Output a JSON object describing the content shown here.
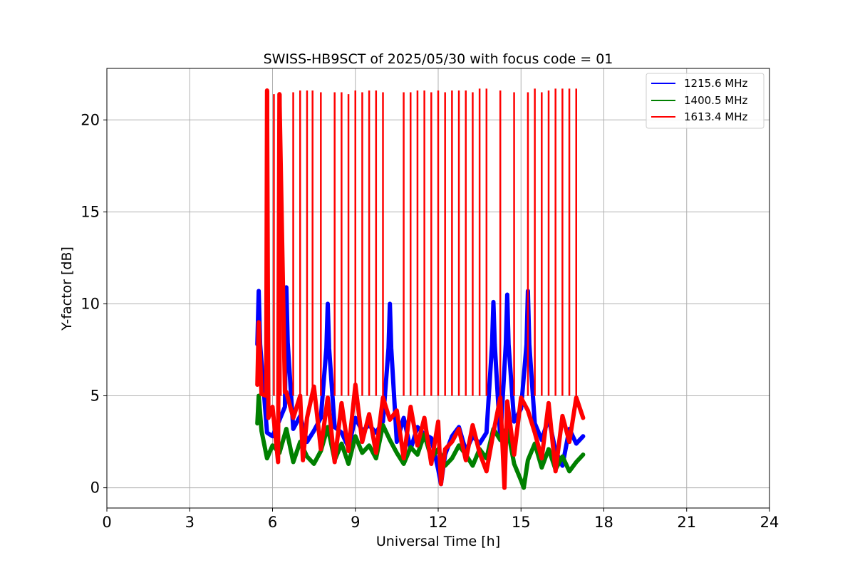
{
  "chart_data": {
    "type": "line",
    "title": "SWISS-HB9SCT of 2025/05/30 with focus code = 01",
    "xlabel": "Universal Time [h]",
    "ylabel": "Y-factor [dB]",
    "xlim": [
      0,
      24
    ],
    "ylim": [
      -1.1,
      22.8
    ],
    "xticks": [
      0,
      3,
      6,
      9,
      12,
      15,
      18,
      21,
      24
    ],
    "yticks": [
      0,
      5,
      10,
      15,
      20
    ],
    "grid": true,
    "legend_position": "top-right",
    "series": [
      {
        "name": "1215.6 MHz",
        "color": "#0000ff",
        "x": [
          5.45,
          5.5,
          5.55,
          5.8,
          6.0,
          6.2,
          6.45,
          6.5,
          6.55,
          6.75,
          7.0,
          7.25,
          7.5,
          7.75,
          7.95,
          8.0,
          8.05,
          8.25,
          8.5,
          8.75,
          9.0,
          9.25,
          9.5,
          9.75,
          10.0,
          10.2,
          10.25,
          10.3,
          10.5,
          10.75,
          11.0,
          11.25,
          11.5,
          11.75,
          12.0,
          12.1,
          12.25,
          12.5,
          12.75,
          13.0,
          13.25,
          13.5,
          13.75,
          13.95,
          14.0,
          14.05,
          14.25,
          14.45,
          14.5,
          14.55,
          14.75,
          15.0,
          15.2,
          15.25,
          15.3,
          15.5,
          15.75,
          16.0,
          16.25,
          16.5,
          16.75,
          17.0,
          17.25
        ],
        "y": [
          7.8,
          10.7,
          7.8,
          3.0,
          2.8,
          3.5,
          4.4,
          10.9,
          7.9,
          3.2,
          3.9,
          2.5,
          3.1,
          3.8,
          7.6,
          10.0,
          7.6,
          3.3,
          3.0,
          2.2,
          3.8,
          3.1,
          3.4,
          3.0,
          3.6,
          7.6,
          10.0,
          7.6,
          2.5,
          3.8,
          2.1,
          3.3,
          2.9,
          2.7,
          1.0,
          0.2,
          1.8,
          2.8,
          3.3,
          2.0,
          2.8,
          2.4,
          3.0,
          7.8,
          10.1,
          7.8,
          2.6,
          7.8,
          10.5,
          7.8,
          3.6,
          4.3,
          7.8,
          10.7,
          7.8,
          3.5,
          2.6,
          3.8,
          2.0,
          1.2,
          3.2,
          2.4,
          2.8
        ]
      },
      {
        "name": "1400.5 MHz",
        "color": "#008000",
        "x": [
          5.45,
          5.5,
          5.6,
          5.8,
          6.0,
          6.25,
          6.5,
          6.75,
          7.0,
          7.25,
          7.5,
          7.75,
          8.0,
          8.25,
          8.5,
          8.75,
          9.0,
          9.25,
          9.5,
          9.75,
          10.0,
          10.25,
          10.5,
          10.75,
          11.0,
          11.25,
          11.5,
          11.75,
          12.0,
          12.25,
          12.5,
          12.75,
          13.0,
          13.25,
          13.5,
          13.75,
          14.0,
          14.25,
          14.5,
          14.75,
          15.0,
          15.1,
          15.25,
          15.5,
          15.75,
          16.0,
          16.25,
          16.5,
          16.75,
          17.0,
          17.25
        ],
        "y": [
          3.5,
          5.0,
          3.1,
          1.6,
          2.3,
          1.9,
          3.2,
          1.4,
          2.5,
          1.7,
          1.3,
          2.0,
          3.3,
          1.5,
          2.4,
          1.3,
          2.8,
          1.9,
          2.3,
          1.6,
          3.4,
          2.6,
          1.9,
          1.3,
          2.2,
          1.8,
          2.9,
          1.6,
          2.1,
          1.2,
          1.6,
          2.3,
          1.8,
          1.2,
          2.1,
          1.6,
          3.2,
          2.6,
          3.3,
          1.3,
          0.4,
          0.0,
          1.5,
          2.4,
          1.1,
          2.1,
          1.0,
          1.7,
          0.9,
          1.4,
          1.8
        ]
      },
      {
        "name": "1613.4 MHz",
        "color": "#ff0000",
        "x": [
          5.45,
          5.5,
          5.6,
          5.77,
          5.8,
          5.85,
          6.0,
          6.2,
          6.25,
          6.45,
          6.5,
          6.75,
          7.0,
          7.1,
          7.25,
          7.5,
          7.75,
          8.0,
          8.25,
          8.5,
          8.75,
          9.0,
          9.25,
          9.5,
          9.75,
          10.0,
          10.25,
          10.5,
          10.75,
          11.0,
          11.25,
          11.5,
          11.75,
          12.0,
          12.1,
          12.25,
          12.5,
          12.75,
          13.0,
          13.25,
          13.5,
          13.75,
          14.0,
          14.25,
          14.4,
          14.5,
          14.75,
          15.0,
          15.25,
          15.5,
          15.75,
          16.0,
          16.25,
          16.5,
          16.75,
          17.0,
          17.25
        ],
        "y": [
          5.6,
          9.0,
          5.1,
          5.0,
          21.6,
          3.8,
          4.4,
          1.4,
          21.4,
          5.2,
          5.2,
          3.8,
          5.0,
          1.5,
          3.8,
          5.5,
          2.1,
          4.9,
          1.4,
          4.6,
          2.0,
          5.6,
          2.5,
          4.0,
          1.9,
          4.9,
          3.7,
          4.2,
          1.6,
          4.4,
          2.3,
          3.8,
          1.3,
          3.6,
          0.2,
          2.1,
          2.5,
          3.2,
          1.5,
          3.4,
          1.9,
          0.9,
          3.0,
          4.9,
          0.0,
          4.7,
          1.8,
          4.9,
          4.2,
          3.0,
          1.6,
          4.6,
          0.9,
          3.9,
          2.5,
          4.9,
          3.8
        ]
      }
    ],
    "calibration_spikes": {
      "color": "#ff0000",
      "x": [
        5.85,
        6.05,
        6.3,
        6.75,
        7.0,
        7.25,
        7.45,
        7.75,
        8.25,
        8.5,
        8.75,
        9.0,
        9.25,
        9.5,
        9.75,
        10.0,
        10.75,
        11.0,
        11.25,
        11.5,
        11.75,
        12.0,
        12.25,
        12.5,
        12.75,
        13.0,
        13.25,
        13.5,
        13.75,
        14.25,
        14.75,
        15.25,
        15.5,
        15.75,
        16.0,
        16.25,
        16.5,
        16.75,
        17.0
      ],
      "y": [
        21.6,
        21.4,
        21.4,
        21.5,
        21.6,
        21.6,
        21.6,
        21.5,
        21.5,
        21.5,
        21.4,
        21.6,
        21.5,
        21.6,
        21.6,
        21.5,
        21.5,
        21.5,
        21.6,
        21.6,
        21.5,
        21.6,
        21.5,
        21.6,
        21.6,
        21.6,
        21.5,
        21.7,
        21.7,
        21.6,
        21.5,
        21.5,
        21.7,
        21.5,
        21.6,
        21.7,
        21.7,
        21.7,
        21.7
      ]
    },
    "legend": [
      "1215.6 MHz",
      "1400.5 MHz",
      "1613.4 MHz"
    ]
  }
}
